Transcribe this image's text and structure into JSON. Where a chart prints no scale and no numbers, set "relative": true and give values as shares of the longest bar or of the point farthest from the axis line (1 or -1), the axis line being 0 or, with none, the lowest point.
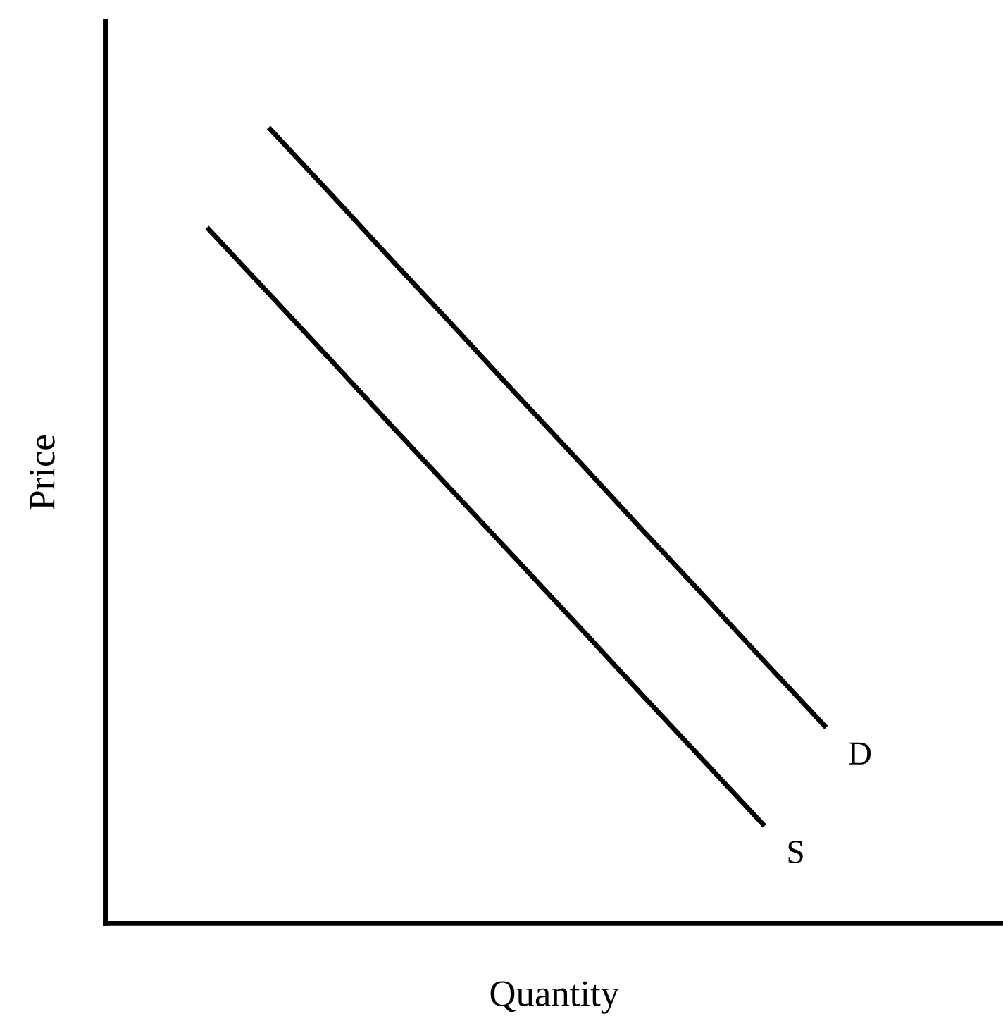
{
  "chart_data": {
    "type": "line",
    "relative": true,
    "xlabel": "Quantity",
    "ylabel": "Price",
    "legend": false,
    "grid": false,
    "marker": "none",
    "line_style": "solid",
    "categories": [
      null,
      null,
      null,
      null,
      null,
      null,
      null,
      null,
      null,
      null,
      null
    ],
    "series": [
      {
        "name": "D",
        "color": "#000000",
        "values": [
          null,
          1,
          0.917,
          0.833,
          0.75,
          0.666,
          0.583,
          0.499,
          0.416,
          0.332,
          0.249
        ]
      },
      {
        "name": "S",
        "color": "#000000",
        "values": [
          0.874,
          0.791,
          0.708,
          0.624,
          0.541,
          0.458,
          0.375,
          0.291,
          0.208,
          0.125,
          null
        ]
      }
    ]
  }
}
